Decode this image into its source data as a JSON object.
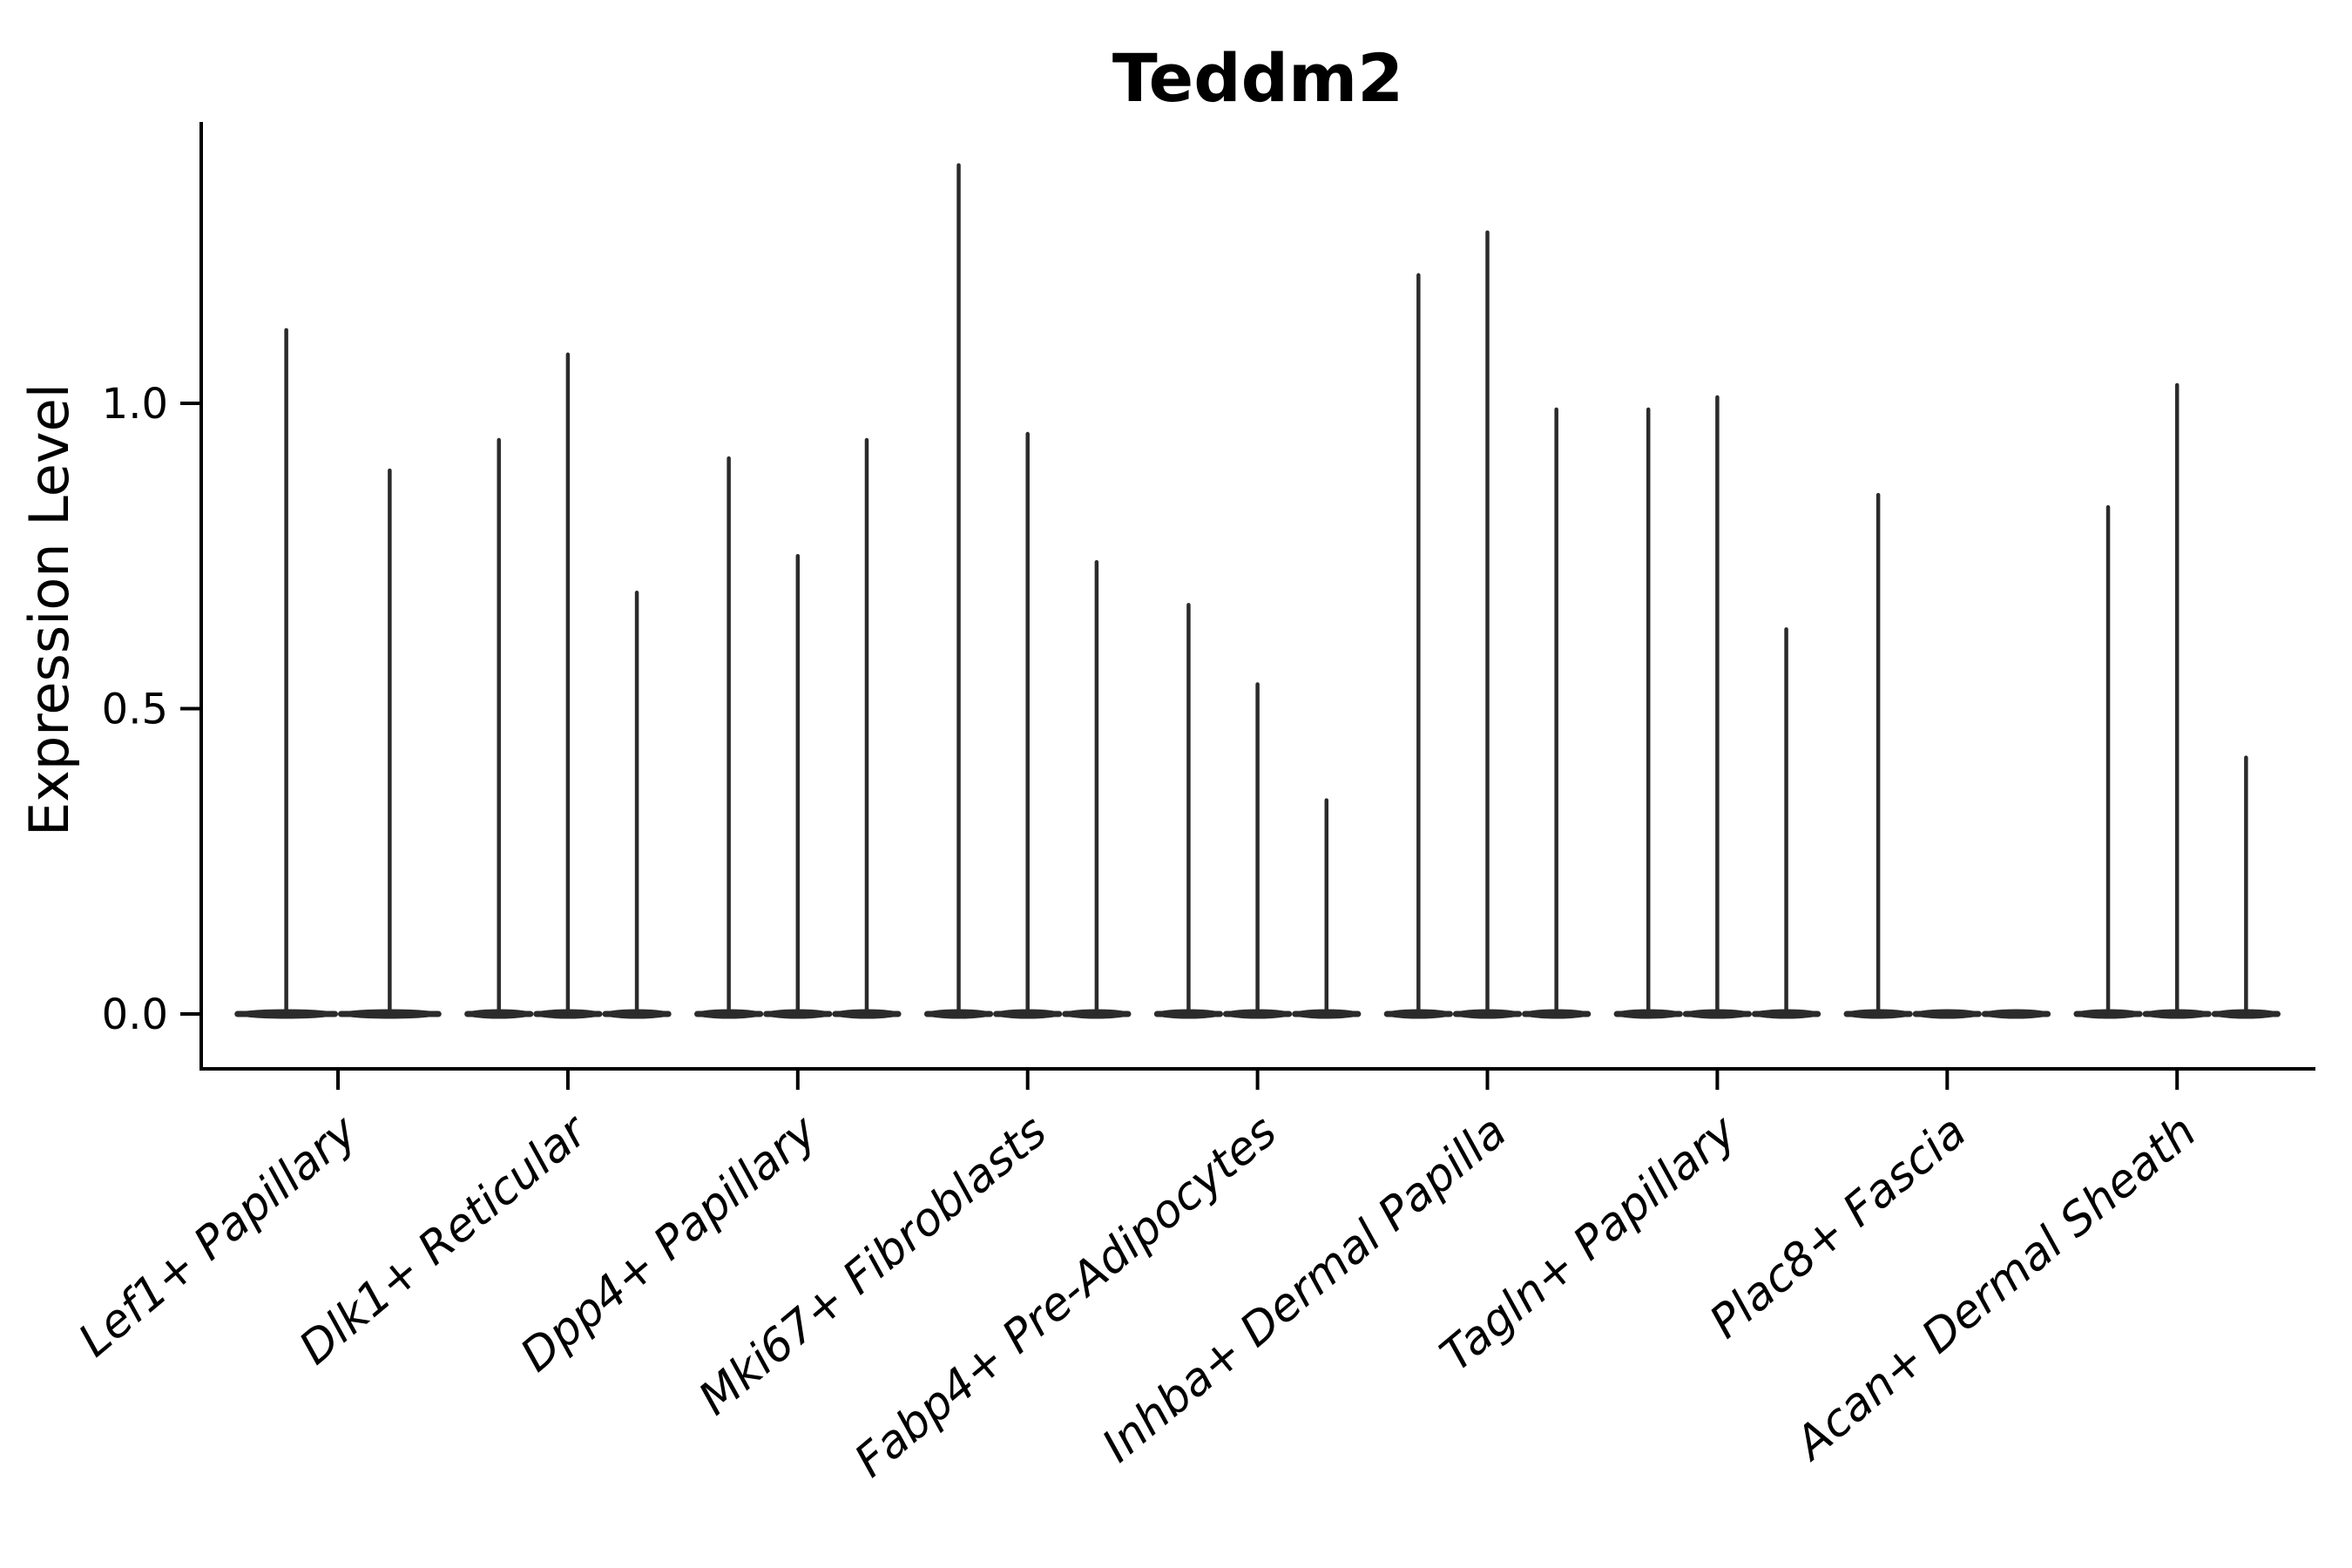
{
  "title": "Teddm2",
  "ylabel": "Expression Level",
  "colors": {
    "violin": "#2b2b2b",
    "axis": "#000000",
    "text": "#000000",
    "background": "#ffffff"
  },
  "chart_data": {
    "type": "violin",
    "title": "Teddm2",
    "xlabel": "",
    "ylabel": "Expression Level",
    "ytick_labels": [
      "0.0",
      "0.5",
      "1.0"
    ],
    "ytick_values": [
      0.0,
      0.5,
      1.0
    ],
    "ylim": [
      -0.09,
      1.46
    ],
    "grid": false,
    "legend": null,
    "xtick_rotation_deg": 40,
    "categories": [
      "Lef1+ Papillary",
      "Dlk1+ Reticular",
      "Dpp4+ Papillary",
      "Mki67+ Fibroblasts",
      "Fabp4+ Pre-Adipocytes",
      "Inhba+ Dermal Papilla",
      "Tagln+ Papillary",
      "Plac8+ Fascia",
      "Acan+ Dermal Sheath"
    ],
    "groups": [
      {
        "category": "Lef1+ Papillary",
        "violin_maxima": [
          1.12,
          0.89
        ]
      },
      {
        "category": "Dlk1+ Reticular",
        "violin_maxima": [
          0.94,
          1.08,
          0.69
        ]
      },
      {
        "category": "Dpp4+ Papillary",
        "violin_maxima": [
          0.91,
          0.75,
          0.94
        ]
      },
      {
        "category": "Mki67+ Fibroblasts",
        "violin_maxima": [
          1.39,
          0.95,
          0.74
        ]
      },
      {
        "category": "Fabp4+ Pre-Adipocytes",
        "violin_maxima": [
          0.67,
          0.54,
          0.35
        ]
      },
      {
        "category": "Inhba+ Dermal Papilla",
        "violin_maxima": [
          1.21,
          1.28,
          0.99
        ]
      },
      {
        "category": "Tagln+ Papillary",
        "violin_maxima": [
          0.99,
          1.01,
          0.63
        ]
      },
      {
        "category": "Plac8+ Fascia",
        "violin_maxima": [
          0.85,
          0.0,
          0.0
        ]
      },
      {
        "category": "Acan+ Dermal Sheath",
        "violin_maxima": [
          0.83,
          1.03,
          0.42
        ]
      }
    ],
    "description": "Expression distributions concentrated at 0 (flat violin bodies on the baseline) with thin density spikes reaching each violin's maximum expression value."
  }
}
